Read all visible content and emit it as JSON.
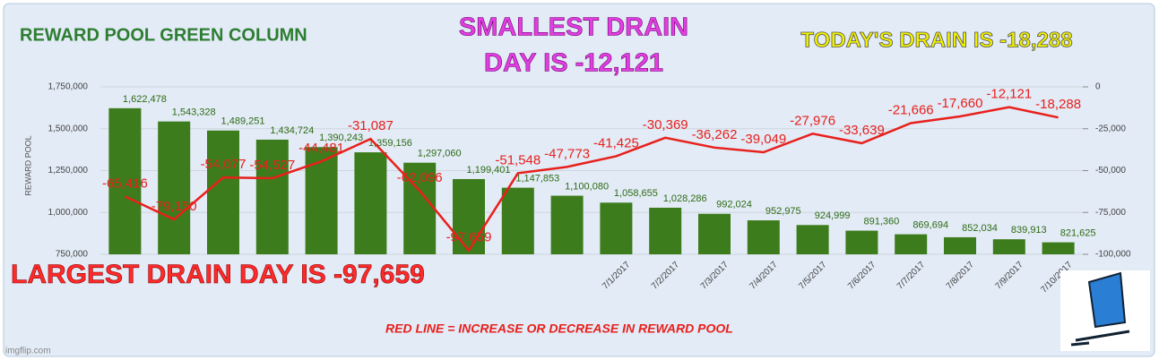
{
  "chart_data": {
    "type": "bar",
    "title": "REWARD POOL GREEN COLUMN",
    "y_label": "REWARD POOL",
    "categories": [
      null,
      null,
      null,
      null,
      null,
      null,
      null,
      null,
      null,
      null,
      "7/1/2017",
      "7/2/2017",
      "7/3/2017",
      "7/4/2017",
      "7/5/2017",
      "7/6/2017",
      "7/7/2017",
      "7/8/2017",
      "7/9/2017",
      "7/10/2017"
    ],
    "ylim": [
      750000,
      1750000
    ],
    "yticks": [
      {
        "value": 750000,
        "label": "750,000"
      },
      {
        "value": 1000000,
        "label": "1,000,000"
      },
      {
        "value": 1250000,
        "label": "1,250,000"
      },
      {
        "value": 1500000,
        "label": "1,500,000"
      },
      {
        "value": 1750000,
        "label": "1,750,000"
      }
    ],
    "y2lim": [
      -100000,
      0
    ],
    "y2ticks": [
      0,
      {
        "value": -25000,
        "label": "-25,000"
      },
      {
        "value": -50000,
        "label": "-50,000"
      },
      {
        "value": -75000,
        "label": "-75,000"
      },
      {
        "value": -100000,
        "label": "-100,000"
      }
    ],
    "grid": true,
    "series": [
      {
        "type": "bar",
        "color": "#3d7c1c",
        "values": [
          1622478,
          1543328,
          1489251,
          1434724,
          1390243,
          1359156,
          1297060,
          1199401,
          1147853,
          1100080,
          1058655,
          1028286,
          992024,
          952975,
          924999,
          891360,
          869694,
          852034,
          839913,
          821625
        ],
        "value_labels": [
          "1,622,478",
          "1,543,328",
          "1,489,251",
          "1,434,724",
          "1,390,243",
          "1,359,156",
          "1,297,060",
          "1,199,401",
          "1,147,853",
          "1,100,080",
          "1,058,655",
          "1,028,286",
          "992,024",
          "952,975",
          "924,999",
          "891,360",
          "869,694",
          "852,034",
          "839,913",
          "821,625"
        ]
      },
      {
        "type": "line",
        "axis": "y2",
        "color": "#e8201c",
        "values": [
          -65416,
          -79150,
          -54077,
          -54527,
          -44481,
          -31087,
          -62096,
          -97659,
          -51548,
          -47773,
          -41425,
          -30369,
          -36262,
          -39049,
          -27976,
          -33639,
          -21666,
          -17660,
          -12121,
          -18288
        ],
        "value_labels": [
          "-65,416",
          "-79,150",
          "-54,077",
          "-54,527",
          "-44,481",
          "-31,087",
          "-62,096",
          "-97,659",
          "-51,548",
          "-47,773",
          "-41,425",
          "-30,369",
          "-36,262",
          "-39,049",
          "-27,976",
          "-33,639",
          "-21,666",
          "-17,660",
          "-12,121",
          "-18,288"
        ]
      }
    ],
    "annotations": {
      "smallest": [
        "SMALLEST DRAIN",
        "DAY IS  -12,121"
      ],
      "today": "TODAY'S DRAIN IS -18,288",
      "largest": "LARGEST DRAIN DAY IS -97,659",
      "note": "RED LINE = INCREASE OR DECREASE IN REWARD POOL"
    }
  },
  "watermark": "imgflip.com"
}
